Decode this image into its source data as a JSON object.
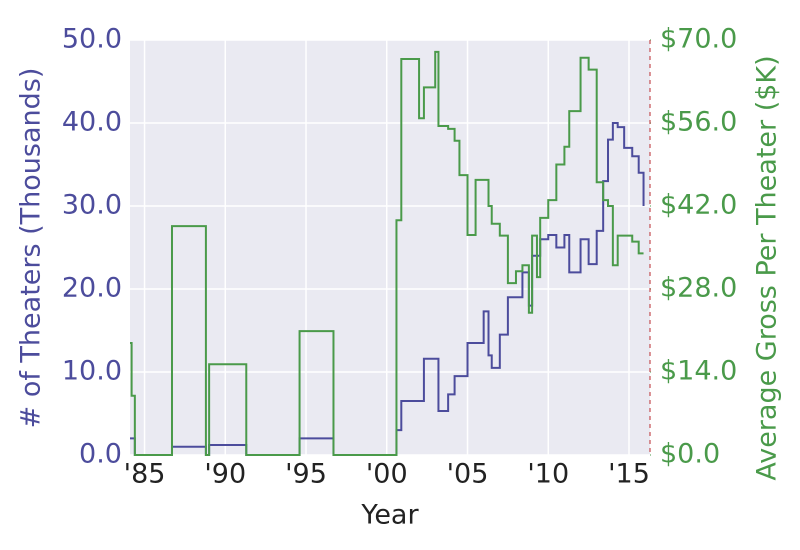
{
  "chart_data": {
    "type": "step-line",
    "xlabel": "Year",
    "ylabel": "# of Theaters (Thousands)",
    "y2label": "Average Gross Per Theater ($K)",
    "x": [
      1984.1,
      1984.2,
      1984.4,
      1986.7,
      1988.8,
      1989.0,
      1991.3,
      1994.6,
      1996.7,
      2000.6,
      2000.9,
      2002.0,
      2002.3,
      2003.0,
      2003.2,
      2003.8,
      2004.2,
      2004.5,
      2005.0,
      2005.5,
      2006.0,
      2006.3,
      2006.5,
      2007.0,
      2007.5,
      2008.0,
      2008.4,
      2008.8,
      2009.0,
      2009.3,
      2009.5,
      2010.0,
      2010.5,
      2011.0,
      2011.3,
      2012.0,
      2012.5,
      2013.0,
      2013.4,
      2013.7,
      2014.0,
      2014.3,
      2014.7,
      2015.2,
      2015.6,
      2015.9
    ],
    "series": [
      {
        "name": "# of Theaters (Thousands)",
        "color": "#4c4c9c",
        "axis": "y",
        "values": [
          2.0,
          2.0,
          0,
          1.0,
          0,
          1.2,
          0,
          2.0,
          0,
          3.0,
          6.5,
          6.5,
          11.6,
          11.6,
          5.3,
          7.3,
          9.5,
          9.5,
          13.5,
          13.5,
          17.3,
          12.0,
          10.5,
          14.5,
          19.0,
          19.0,
          22.0,
          18.0,
          24.0,
          24.0,
          26.0,
          26.5,
          25.0,
          26.5,
          22.0,
          26.0,
          23.0,
          27.0,
          33.0,
          38.0,
          40.0,
          39.5,
          37.0,
          36.0,
          34.0,
          30.0
        ]
      },
      {
        "name": "Average Gross Per Theater ($K)",
        "color": "#4a9a4a",
        "axis": "y2",
        "values": [
          18.9,
          10.0,
          0,
          38.6,
          0,
          15.3,
          0,
          20.9,
          0,
          39.6,
          66.8,
          56.8,
          62.0,
          68.0,
          55.5,
          55.0,
          53.0,
          47.2,
          37.1,
          46.4,
          46.4,
          42.0,
          39.0,
          37.0,
          29.0,
          31.0,
          32.0,
          24.0,
          37.0,
          30.0,
          40.0,
          43.0,
          49.0,
          52.0,
          58.0,
          67.0,
          65.0,
          46.0,
          43.0,
          42.0,
          32.0,
          37.0,
          37.0,
          36.0,
          34.0,
          34.0
        ]
      }
    ],
    "xlim": [
      1984.1,
      2016.3
    ],
    "xticks": [
      {
        "value": 1985,
        "label": "'85"
      },
      {
        "value": 1990,
        "label": "'90"
      },
      {
        "value": 1995,
        "label": "'95"
      },
      {
        "value": 2000,
        "label": "'00"
      },
      {
        "value": 2005,
        "label": "'05"
      },
      {
        "value": 2010,
        "label": "'10"
      },
      {
        "value": 2015,
        "label": "'15"
      }
    ],
    "ylim": [
      0,
      50
    ],
    "yticks": [
      {
        "value": 0,
        "label": "0.0"
      },
      {
        "value": 10,
        "label": "10.0"
      },
      {
        "value": 20,
        "label": "20.0"
      },
      {
        "value": 30,
        "label": "30.0"
      },
      {
        "value": 40,
        "label": "40.0"
      },
      {
        "value": 50,
        "label": "50.0"
      }
    ],
    "y2lim": [
      0,
      70
    ],
    "y2ticks": [
      {
        "value": 0,
        "label": "$0.0"
      },
      {
        "value": 14,
        "label": "$14.0"
      },
      {
        "value": 28,
        "label": "$28.0"
      },
      {
        "value": 42,
        "label": "$42.0"
      },
      {
        "value": 56,
        "label": "$56.0"
      },
      {
        "value": 70,
        "label": "$70.0"
      }
    ],
    "vline": {
      "x": 2016.3,
      "color": "#c44e52"
    },
    "grid": true
  }
}
